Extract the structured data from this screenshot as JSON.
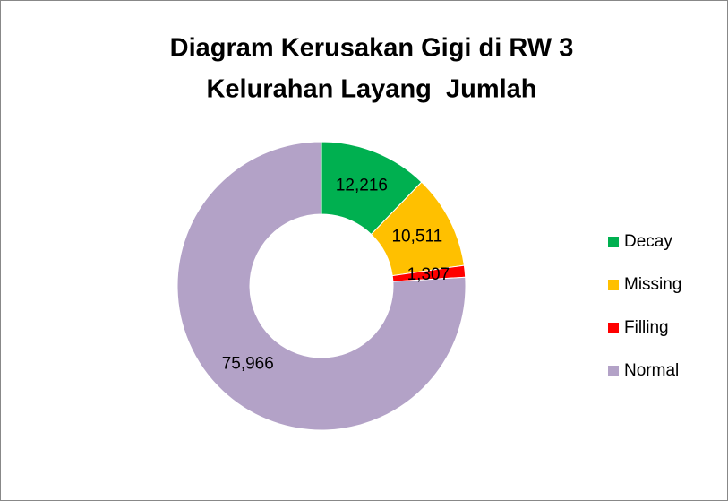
{
  "chart_data": {
    "type": "donut",
    "title": [
      "Diagram Kerusakan Gigi di RW 3",
      "Kelurahan Layang  Jumlah"
    ],
    "categories": [
      "Decay",
      "Missing",
      "Filling",
      "Normal"
    ],
    "values": [
      12216,
      10511,
      1307,
      75966
    ],
    "value_labels": [
      "12,216",
      "10,511",
      "1,307",
      "75,966"
    ],
    "colors": [
      "#00b050",
      "#ffc000",
      "#ff0000",
      "#b3a2c7"
    ],
    "legend": "right"
  }
}
